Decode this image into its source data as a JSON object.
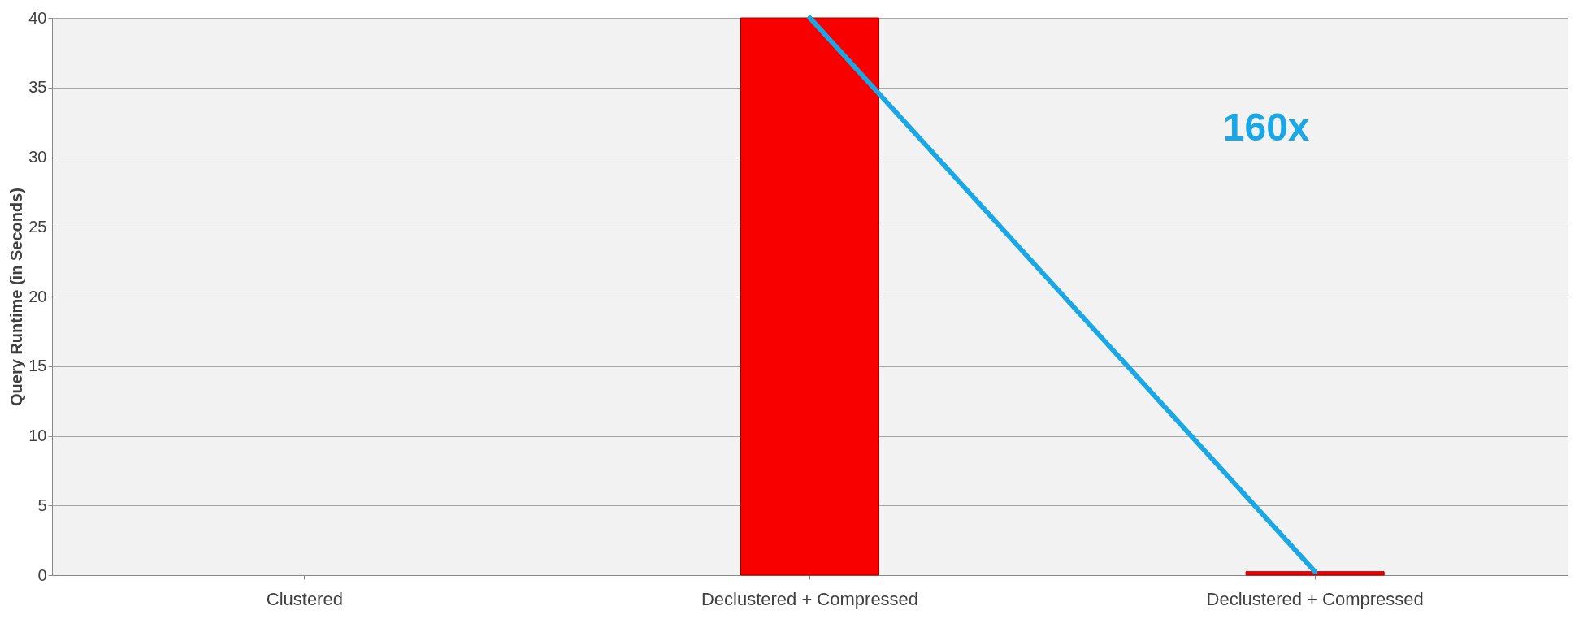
{
  "chart_data": {
    "type": "bar",
    "ylabel": "Query Runtime (in Seconds)",
    "categories": [
      "Clustered",
      "Declustered + Compressed",
      "Declustered + Compressed"
    ],
    "values": [
      null,
      40,
      0.25
    ],
    "color": "#f90000",
    "ylim": [
      0,
      40
    ],
    "yticks": [
      0,
      5,
      10,
      15,
      20,
      25,
      30,
      35,
      40
    ],
    "grid": "y",
    "annotations": [
      "160x"
    ]
  }
}
